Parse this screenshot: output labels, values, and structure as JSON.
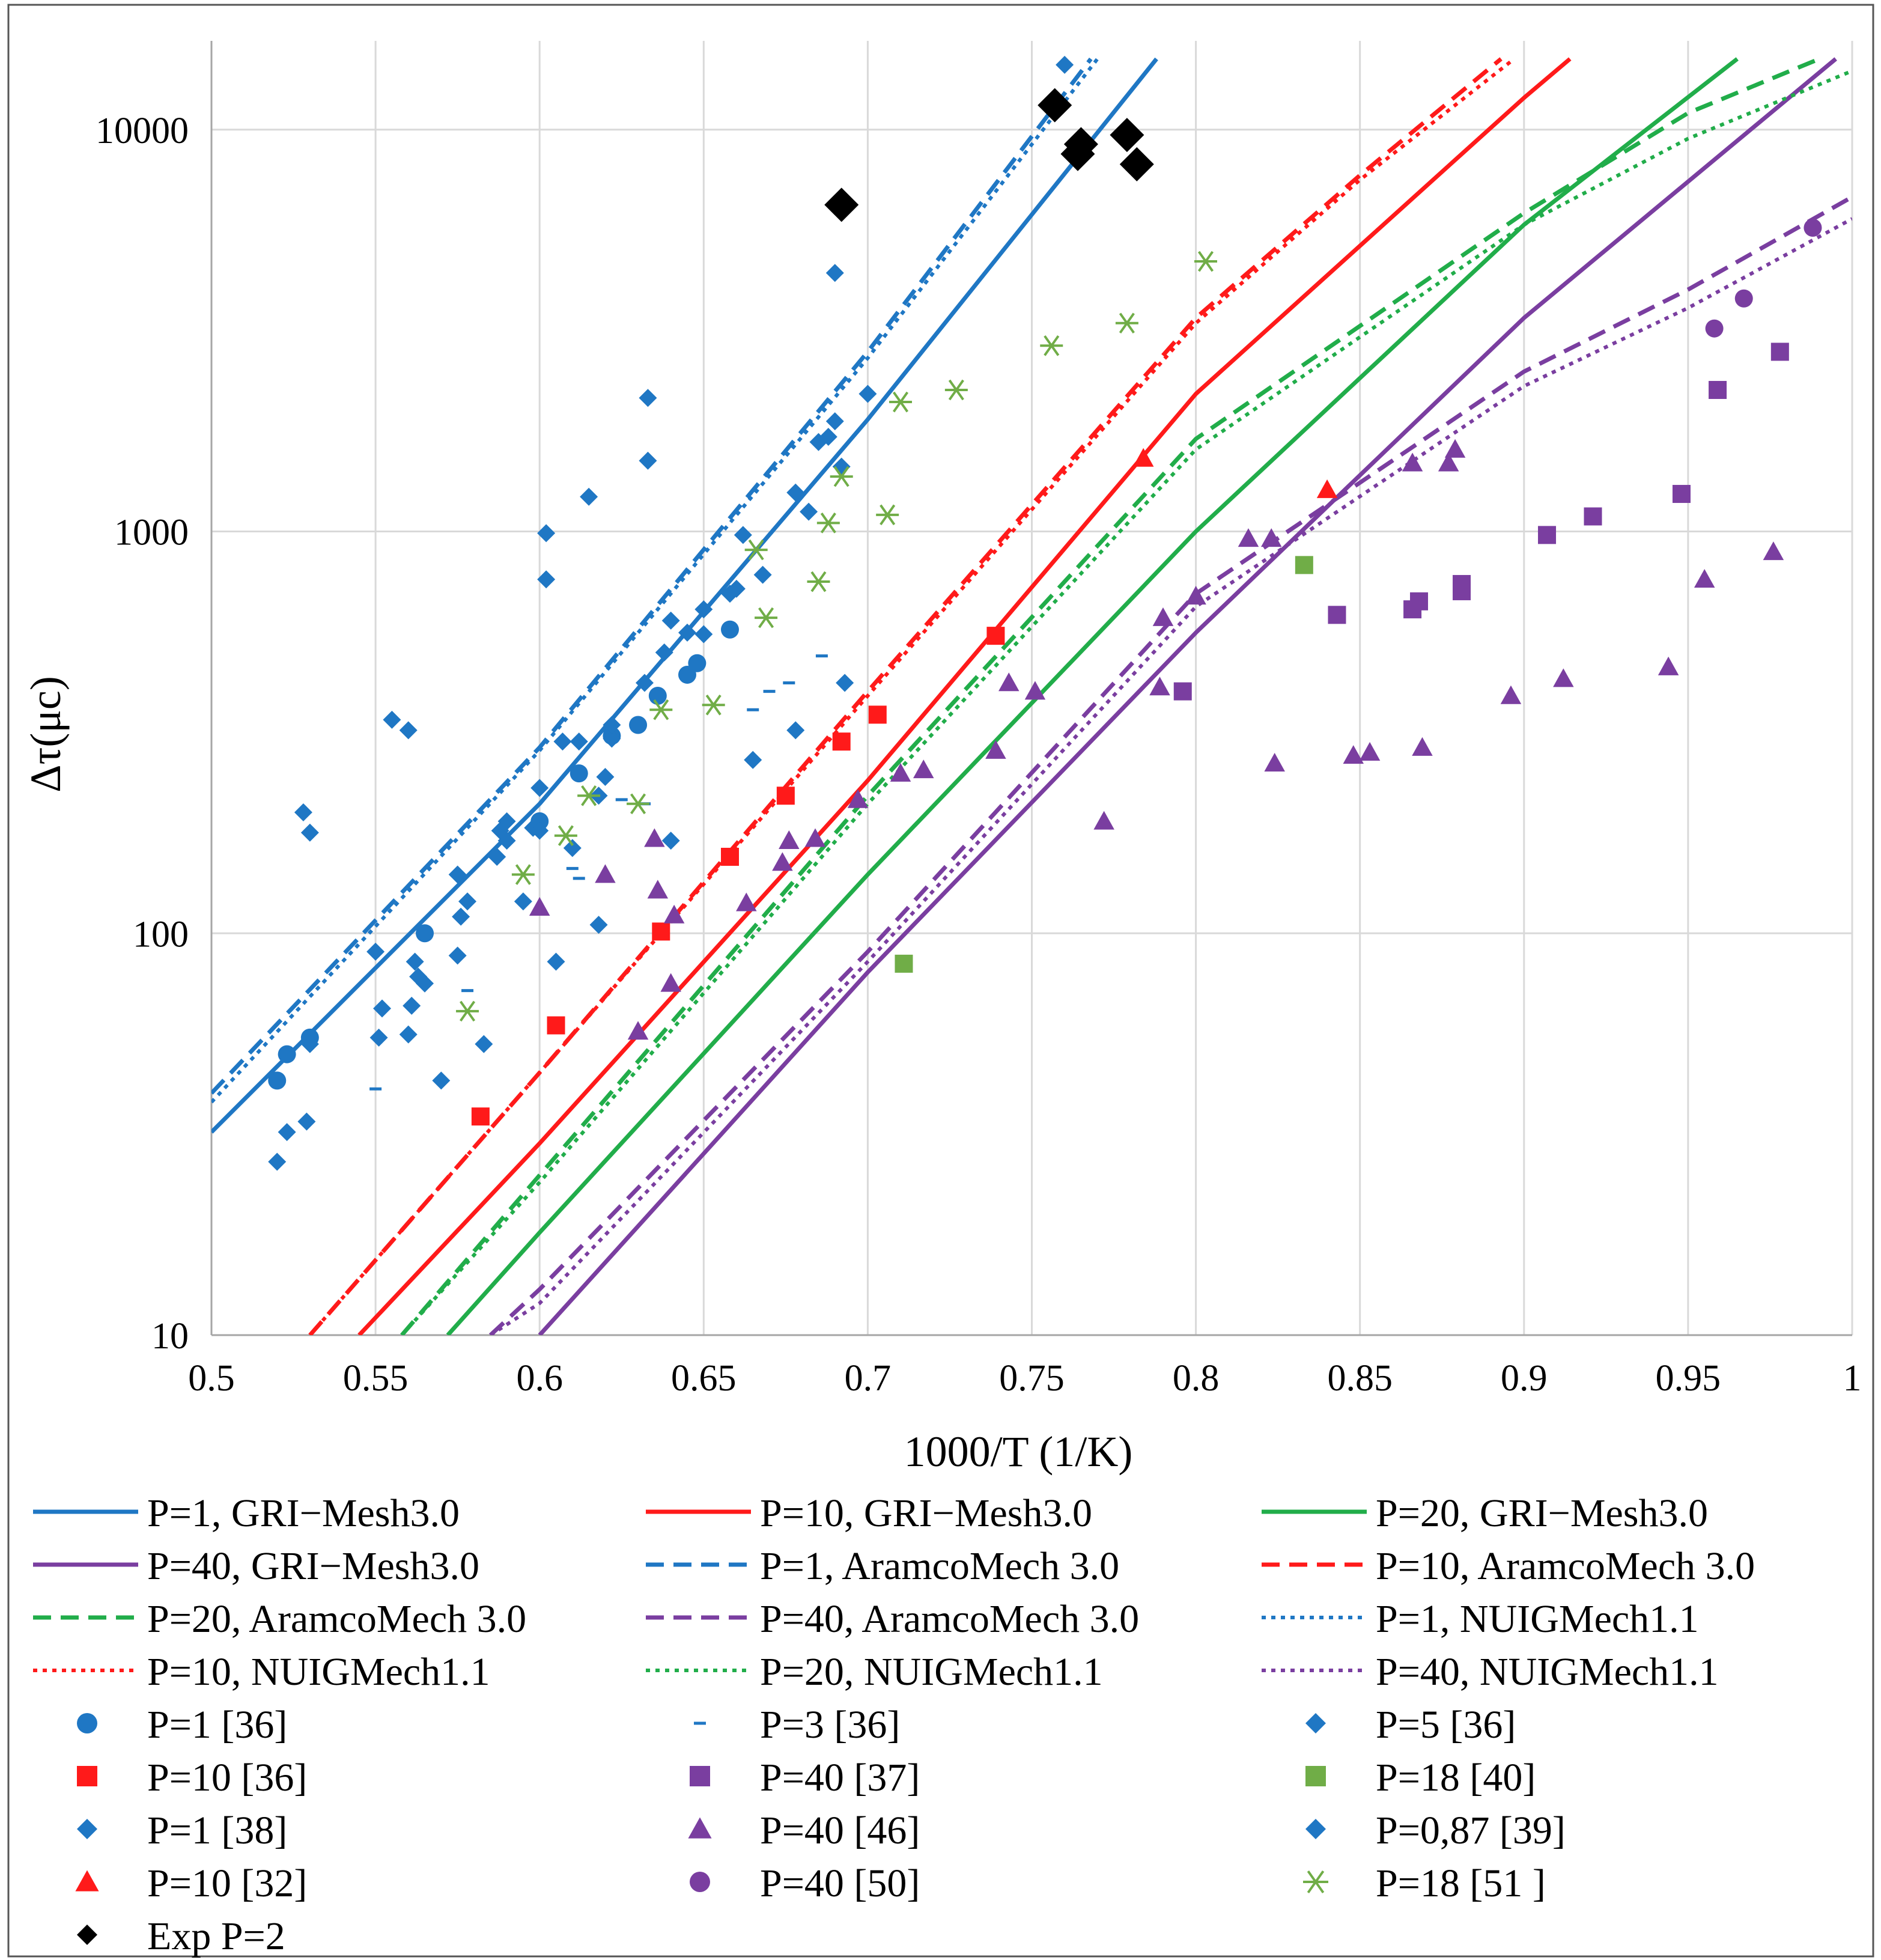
{
  "chart_data": {
    "type": "scatter",
    "title": "",
    "xlabel": "1000/T (1/K)",
    "ylabel": "Δτ(μc)",
    "xlim": [
      0.5,
      1.0
    ],
    "ylim": [
      10,
      15000
    ],
    "yscale": "log",
    "grid": true,
    "legend_position": "bottom",
    "x_ticks": [
      0.5,
      0.55,
      0.6,
      0.65,
      0.7,
      0.75,
      0.8,
      0.85,
      0.9,
      0.95,
      1.0
    ],
    "x_tick_labels": [
      "0.5",
      "0.55",
      "0.6",
      "0.65",
      "0.7",
      "0.75",
      "0.8",
      "0.85",
      "0.9",
      "0.95",
      "1"
    ],
    "y_ticks": [
      10,
      100,
      1000,
      10000
    ],
    "y_tick_labels": [
      "10",
      "100",
      "1000",
      "10000"
    ],
    "series": [
      {
        "name": "P=1, GRI−Mesh3.0",
        "kind": "line",
        "color": "#1f77c4",
        "dash": "solid",
        "x": [
          0.5,
          0.6,
          0.7,
          0.788
        ],
        "y": [
          32,
          210,
          1900,
          15000
        ]
      },
      {
        "name": "P=10, GRI−Mesh3.0",
        "kind": "line",
        "color": "#ff1a1a",
        "dash": "solid",
        "x": [
          0.545,
          0.6,
          0.7,
          0.8,
          0.9,
          0.914
        ],
        "y": [
          10,
          30,
          240,
          2200,
          12000,
          15000
        ]
      },
      {
        "name": "P=20, GRI−Mesh3.0",
        "kind": "line",
        "color": "#21ad4a",
        "dash": "solid",
        "x": [
          0.572,
          0.6,
          0.7,
          0.8,
          0.9,
          0.965
        ],
        "y": [
          10,
          18,
          140,
          1000,
          5800,
          15000
        ]
      },
      {
        "name": "P=40, GRI−Mesh3.0",
        "kind": "line",
        "color": "#7a3ea0",
        "dash": "solid",
        "x": [
          0.6,
          0.7,
          0.8,
          0.9,
          0.995
        ],
        "y": [
          10,
          80,
          560,
          3400,
          15000
        ]
      },
      {
        "name": "P=1, AramcoMech 3.0",
        "kind": "line",
        "color": "#1f77c4",
        "dash": "dashed",
        "x": [
          0.5,
          0.6,
          0.7,
          0.768
        ],
        "y": [
          40,
          290,
          2800,
          15000
        ]
      },
      {
        "name": "P=10, AramcoMech 3.0",
        "kind": "line",
        "color": "#ff1a1a",
        "dash": "dashed",
        "x": [
          0.53,
          0.6,
          0.7,
          0.8,
          0.85,
          0.893
        ],
        "y": [
          10,
          45,
          400,
          3400,
          7700,
          15000
        ]
      },
      {
        "name": "P=20, AramcoMech 3.0",
        "kind": "line",
        "color": "#21ad4a",
        "dash": "dashed",
        "x": [
          0.558,
          0.6,
          0.7,
          0.8,
          0.9,
          0.95,
          0.99
        ],
        "y": [
          10,
          25,
          220,
          1700,
          6200,
          11000,
          15000
        ]
      },
      {
        "name": "P=40, AramcoMech 3.0",
        "kind": "line",
        "color": "#7a3ea0",
        "dash": "dashed",
        "x": [
          0.585,
          0.6,
          0.7,
          0.8,
          0.9,
          0.95,
          1.0
        ],
        "y": [
          10,
          13,
          90,
          700,
          2500,
          4000,
          6800
        ]
      },
      {
        "name": "P=1, NUIGMech1.1",
        "kind": "line",
        "color": "#1f77c4",
        "dash": "dotted",
        "x": [
          0.5,
          0.6,
          0.7,
          0.77
        ],
        "y": [
          38,
          285,
          2700,
          15000
        ]
      },
      {
        "name": "P=10, NUIGMech1.1",
        "kind": "line",
        "color": "#ff1a1a",
        "dash": "dotted",
        "x": [
          0.53,
          0.6,
          0.7,
          0.8,
          0.85,
          0.897
        ],
        "y": [
          10,
          45,
          390,
          3300,
          7500,
          15000
        ]
      },
      {
        "name": "P=20, NUIGMech1.1",
        "kind": "line",
        "color": "#21ad4a",
        "dash": "dotted",
        "x": [
          0.558,
          0.6,
          0.7,
          0.8,
          0.9,
          0.95,
          1.0
        ],
        "y": [
          10,
          24,
          210,
          1600,
          5800,
          9500,
          14000
        ]
      },
      {
        "name": "P=40, NUIGMech1.1",
        "kind": "line",
        "color": "#7a3ea0",
        "dash": "dotted",
        "x": [
          0.585,
          0.6,
          0.7,
          0.8,
          0.9,
          0.95,
          1.0
        ],
        "y": [
          10,
          12,
          85,
          650,
          2300,
          3600,
          6000
        ]
      },
      {
        "name": "P=1 [36]",
        "kind": "marker",
        "marker": "circle",
        "color": "#1f77c4",
        "x": [
          0.52,
          0.523,
          0.53,
          0.565,
          0.6,
          0.612,
          0.622,
          0.63,
          0.636,
          0.645,
          0.648,
          0.658
        ],
        "y": [
          43,
          50,
          55,
          100,
          190,
          250,
          310,
          330,
          390,
          440,
          470,
          570
        ]
      },
      {
        "name": "P=3 [36]",
        "kind": "marker",
        "marker": "dash",
        "color": "#1f77c4",
        "x": [
          0.55,
          0.578,
          0.61,
          0.612,
          0.625,
          0.632,
          0.665,
          0.67,
          0.676,
          0.686
        ],
        "y": [
          41,
          72,
          145,
          137,
          215,
          210,
          360,
          400,
          420,
          490
        ]
      },
      {
        "name": "P=5 [36]",
        "kind": "marker",
        "marker": "diamond",
        "color": "#1f77c4",
        "x": [
          0.52,
          0.523,
          0.529,
          0.53,
          0.551,
          0.552,
          0.56,
          0.561,
          0.562,
          0.563,
          0.57,
          0.575,
          0.576,
          0.578,
          0.583,
          0.587,
          0.588,
          0.59,
          0.595,
          0.598,
          0.6,
          0.602,
          0.602,
          0.605,
          0.61,
          0.615,
          0.618,
          0.62,
          0.622,
          0.633,
          0.633,
          0.64,
          0.65,
          0.665,
          0.668,
          0.678,
          0.682,
          0.685,
          0.69,
          0.69,
          0.692,
          0.693,
          0.7
        ],
        "y": [
          27,
          32,
          34,
          53,
          55,
          65,
          56,
          66,
          85,
          78,
          43,
          88,
          110,
          120,
          53,
          155,
          180,
          170,
          120,
          183,
          230,
          760,
          990,
          85,
          163,
          1220,
          105,
          245,
          305,
          2150,
          1500,
          170,
          555,
          270,
          780,
          320,
          1120,
          1670,
          1880,
          4400,
          1450,
          420,
          2200
        ]
      },
      {
        "name": "P=10 [36]",
        "kind": "marker",
        "marker": "square",
        "color": "#ff1a1a",
        "x": [
          0.582,
          0.605,
          0.637,
          0.658,
          0.675,
          0.692,
          0.703,
          0.739
        ],
        "y": [
          35,
          59,
          101,
          155,
          220,
          300,
          350,
          550
        ]
      },
      {
        "name": "P=40 [37]",
        "kind": "marker",
        "marker": "square",
        "color": "#7a3ea0",
        "x": [
          0.796,
          0.843,
          0.866,
          0.868,
          0.881,
          0.881,
          0.907,
          0.921,
          0.948,
          0.959,
          0.978
        ],
        "y": [
          400,
          620,
          640,
          670,
          710,
          740,
          980,
          1090,
          1240,
          2250,
          2800
        ]
      },
      {
        "name": "P=18 [40]",
        "kind": "marker",
        "marker": "square",
        "color": "#70ad47",
        "x": [
          0.711,
          0.833
        ],
        "y": [
          84,
          825
        ]
      },
      {
        "name": "P=1 [38]",
        "kind": "marker",
        "marker": "diamond",
        "color": "#1f77c4",
        "x": [
          0.528,
          0.55,
          0.555,
          0.575,
          0.59,
          0.612,
          0.622,
          0.632,
          0.638,
          0.645,
          0.65,
          0.66,
          0.662,
          0.678,
          0.688
        ],
        "y": [
          200,
          90,
          340,
          140,
          190,
          300,
          330,
          420,
          500,
          560,
          640,
          720,
          980,
          1250,
          1720
        ]
      },
      {
        "name": "P=40 [46]",
        "kind": "marker",
        "marker": "triangle",
        "color": "#7a3ea0",
        "x": [
          0.6,
          0.62,
          0.63,
          0.635,
          0.636,
          0.64,
          0.641,
          0.663,
          0.674,
          0.676,
          0.684,
          0.697,
          0.71,
          0.717,
          0.739,
          0.743,
          0.751,
          0.772,
          0.789,
          0.79,
          0.8,
          0.816,
          0.823,
          0.824,
          0.848,
          0.853,
          0.866,
          0.869,
          0.877,
          0.879,
          0.896,
          0.912,
          0.944,
          0.955,
          0.976
        ],
        "y": [
          116,
          140,
          57,
          172,
          128,
          75,
          111,
          119,
          150,
          170,
          172,
          215,
          250,
          255,
          285,
          420,
          400,
          190,
          410,
          610,
          690,
          960,
          960,
          265,
          277,
          282,
          1480,
          290,
          1480,
          1600,
          390,
          430,
          460,
          760,
          890
        ]
      },
      {
        "name": "P=0,87 [39]",
        "kind": "marker",
        "marker": "diamond",
        "color": "#1f77c4",
        "x": [
          0.53,
          0.56,
          0.565,
          0.6,
          0.607,
          0.618,
          0.64,
          0.658,
          0.76
        ],
        "y": [
          178,
          320,
          75,
          180,
          300,
          220,
          600,
          700,
          14500
        ]
      },
      {
        "name": "P=10 [32]",
        "kind": "marker",
        "marker": "triangle",
        "color": "#ff1a1a",
        "x": [
          0.784,
          0.84
        ],
        "y": [
          1520,
          1270
        ]
      },
      {
        "name": "P=40 [50]",
        "kind": "marker",
        "marker": "circle",
        "color": "#7a3ea0",
        "x": [
          0.958,
          0.967,
          0.988
        ],
        "y": [
          3200,
          3800,
          5700
        ]
      },
      {
        "name": "P=18 [51 ]",
        "kind": "marker",
        "marker": "asterisk",
        "color": "#70ad47",
        "x": [
          0.578,
          0.595,
          0.608,
          0.615,
          0.63,
          0.637,
          0.653,
          0.666,
          0.669,
          0.685,
          0.688,
          0.692,
          0.706,
          0.71,
          0.727,
          0.756,
          0.779,
          0.803
        ],
        "y": [
          64,
          140,
          175,
          220,
          210,
          360,
          370,
          900,
          610,
          750,
          1050,
          1370,
          1100,
          2100,
          2250,
          2900,
          3300,
          4700
        ]
      },
      {
        "name": "Exp P=2",
        "kind": "marker",
        "marker": "diamond-large",
        "color": "#000000",
        "x": [
          0.692,
          0.757,
          0.764,
          0.765,
          0.779,
          0.782
        ],
        "y": [
          6500,
          11500,
          8700,
          9200,
          9700,
          8200
        ]
      }
    ]
  }
}
